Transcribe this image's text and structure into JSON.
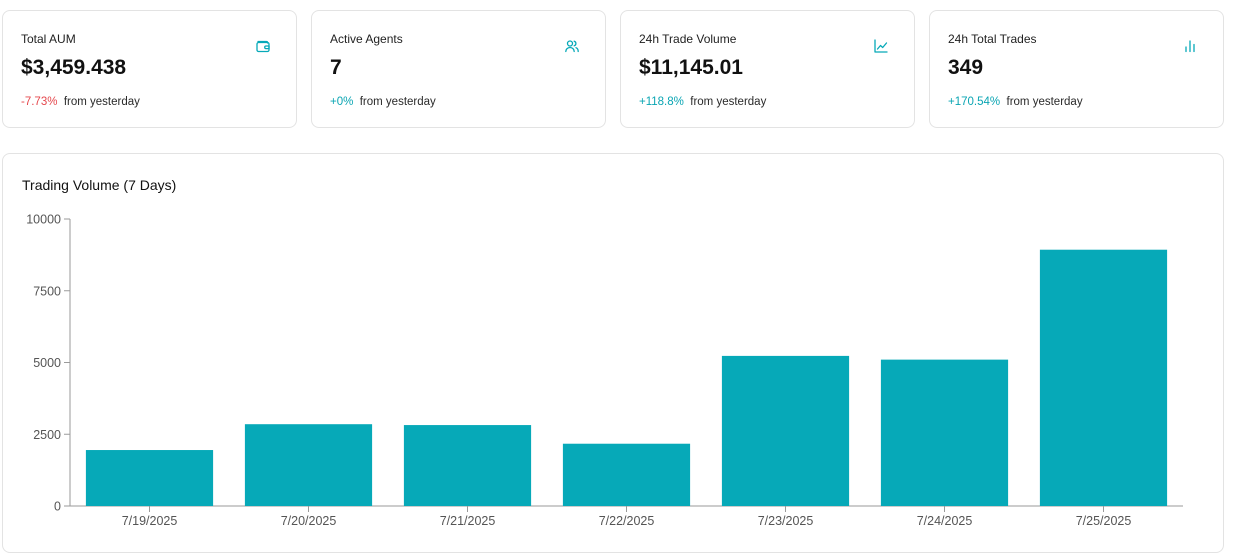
{
  "stat_cards": [
    {
      "title": "Total AUM",
      "value": "$3,459.438",
      "change": "-7.73%",
      "change_direction": "negative",
      "suffix": "from yesterday",
      "icon": "wallet-icon"
    },
    {
      "title": "Active Agents",
      "value": "7",
      "change": "+0%",
      "change_direction": "positive",
      "suffix": "from yesterday",
      "icon": "users-icon"
    },
    {
      "title": "24h Trade Volume",
      "value": "$11,145.01",
      "change": "+118.8%",
      "change_direction": "positive",
      "suffix": "from yesterday",
      "icon": "line-chart-icon"
    },
    {
      "title": "24h Total Trades",
      "value": "349",
      "change": "+170.54%",
      "change_direction": "positive",
      "suffix": "from yesterday",
      "icon": "bar-chart-icon"
    }
  ],
  "colors": {
    "accent": "#06a9b8",
    "negative": "#e5484d",
    "positive": "#0aa5b3"
  },
  "chart_title": "Trading Volume (7 Days)",
  "chart_data": {
    "type": "bar",
    "title": "Trading Volume (7 Days)",
    "categories": [
      "7/19/2025",
      "7/20/2025",
      "7/21/2025",
      "7/22/2025",
      "7/23/2025",
      "7/24/2025",
      "7/25/2025"
    ],
    "values": [
      1950,
      2850,
      2820,
      2170,
      5230,
      5100,
      8930
    ],
    "ylim": [
      0,
      10000
    ],
    "yticks": [
      0,
      2500,
      5000,
      7500,
      10000
    ],
    "grid": false,
    "color": "#06a9b8"
  }
}
